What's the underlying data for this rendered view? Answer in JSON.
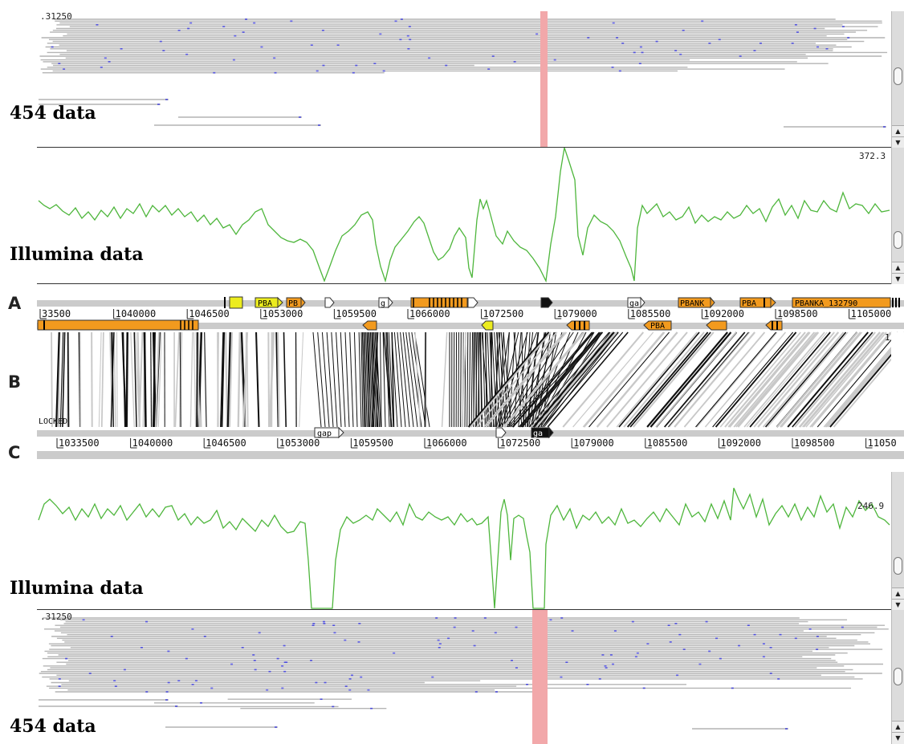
{
  "panels": {
    "top_reads": {
      "label": "454 data",
      "scale_label": ".31250"
    },
    "top_coverage": {
      "label": "Illumina data",
      "max_value": "372.3"
    },
    "comparison": {
      "letters": {
        "a": "A",
        "b": "B",
        "c": "C"
      },
      "locked_label": "LOCKED",
      "right_marker": "1",
      "ruler_a_ticks": [
        "33500",
        "1040000",
        "1046500",
        "1053000",
        "1059500",
        "1066000",
        "1072500",
        "1079000",
        "1085500",
        "1092000",
        "1098500",
        "1105000"
      ],
      "ruler_c_ticks": [
        "1033500",
        "1040000",
        "1046500",
        "1053000",
        "1059500",
        "1066000",
        "1072500",
        "1079000",
        "1085500",
        "1092000",
        "1098500",
        "11050"
      ],
      "feature_labels_top": [
        "PBA",
        "PB",
        "g",
        "ga",
        "PBANK",
        "PBA",
        "PBANKA_132790"
      ],
      "feature_labels_mid": [
        "PBA"
      ],
      "feature_labels_bottom": [
        "gap",
        "ga"
      ]
    },
    "bottom_coverage": {
      "label": "Illumina data",
      "max_value": "246.9"
    },
    "bottom_reads": {
      "label": "454 data",
      "scale_label": ".31250"
    }
  },
  "colors": {
    "read_line": "#b4b4b4",
    "read_tick": "#4a4ad6",
    "highlight": "#f2a8aa",
    "coverage_line": "#4eb63c",
    "feature_orange": "#f29a1e",
    "feature_yellow": "#ecec1e",
    "match_black": "#111111",
    "match_gray": "#c8c8c8",
    "ruler_gray": "#cbcbcb"
  }
}
